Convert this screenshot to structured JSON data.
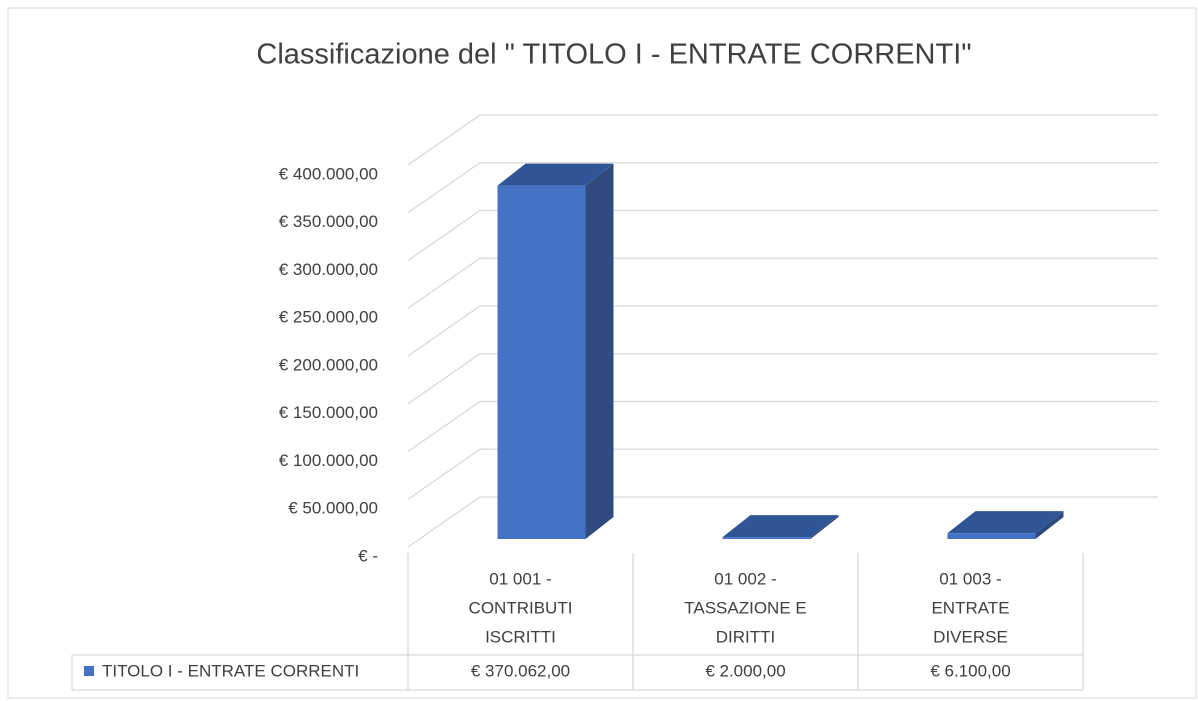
{
  "chart_data": {
    "type": "bar3d",
    "title": "Classificazione del \" TITOLO I - ENTRATE CORRENTI\"",
    "categories": [
      [
        "01 001 -",
        "CONTRIBUTI",
        "ISCRITTI"
      ],
      [
        "01 002 -",
        "TASSAZIONE E",
        "DIRITTI"
      ],
      [
        "01 003 -",
        "ENTRATE",
        "DIVERSE"
      ]
    ],
    "series": [
      {
        "name": "TITOLO I - ENTRATE CORRENTI",
        "color": "#4472c4",
        "values": [
          370062,
          2000,
          6100
        ],
        "value_labels": [
          "€ 370.062,00",
          "€ 2.000,00",
          "€ 6.100,00"
        ]
      }
    ],
    "ylim": [
      0,
      400000
    ],
    "yticks": [
      {
        "value": 0,
        "label": "€ -"
      },
      {
        "value": 50000,
        "label": "€ 50.000,00"
      },
      {
        "value": 100000,
        "label": "€ 100.000,00"
      },
      {
        "value": 150000,
        "label": "€ 150.000,00"
      },
      {
        "value": 200000,
        "label": "€ 200.000,00"
      },
      {
        "value": 250000,
        "label": "€ 250.000,00"
      },
      {
        "value": 300000,
        "label": "€ 300.000,00"
      },
      {
        "value": 350000,
        "label": "€ 350.000,00"
      },
      {
        "value": 400000,
        "label": "€ 400.000,00"
      }
    ],
    "grid": true,
    "data_table": true
  }
}
